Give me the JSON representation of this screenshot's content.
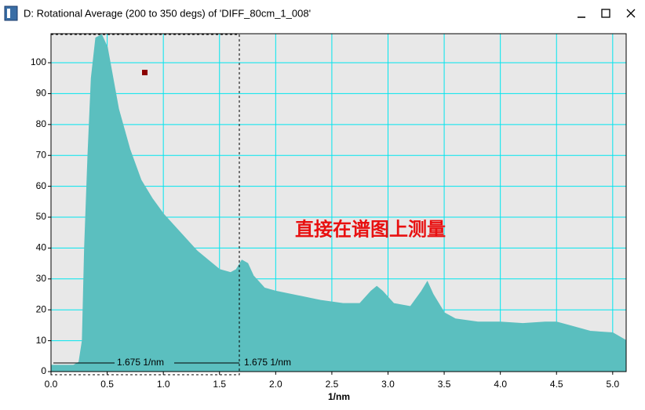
{
  "window": {
    "title": "D: Rotational Average (200 to 350 degs) of 'DIFF_80cm_1_008'"
  },
  "chart_data": {
    "type": "area",
    "xlabel": "1/nm",
    "annotation": "直接在谱图上测量",
    "measurements": [
      "1.675 1/nm",
      "1.675 1/nm"
    ],
    "color": "#5bbfbf",
    "grid": true,
    "xlim": [
      0,
      5.12
    ],
    "ylim": [
      0,
      109.4
    ],
    "xticks": [
      {
        "value": 0,
        "label": "0.0"
      },
      0.5,
      {
        "value": 1,
        "label": "1.0"
      },
      1.5,
      {
        "value": 2,
        "label": "2.0"
      },
      2.5,
      {
        "value": 3,
        "label": "3.0"
      },
      3.5,
      {
        "value": 4,
        "label": "4.0"
      },
      4.5,
      {
        "value": 5,
        "label": "5.0"
      }
    ],
    "yticks": [
      0,
      10,
      20,
      30,
      40,
      50,
      60,
      70,
      80,
      90,
      100
    ],
    "x": [
      0,
      0.1,
      0.2,
      0.25,
      0.28,
      0.3,
      0.33,
      0.36,
      0.4,
      0.45,
      0.5,
      0.55,
      0.6,
      0.7,
      0.8,
      0.9,
      1.0,
      1.1,
      1.2,
      1.3,
      1.4,
      1.5,
      1.6,
      1.65,
      1.7,
      1.75,
      1.8,
      1.9,
      2.0,
      2.2,
      2.4,
      2.6,
      2.75,
      2.85,
      2.9,
      2.95,
      3.05,
      3.2,
      3.3,
      3.35,
      3.4,
      3.5,
      3.6,
      3.8,
      4.0,
      4.2,
      4.4,
      4.5,
      4.6,
      4.8,
      5.0,
      5.12
    ],
    "values": [
      2,
      2,
      2,
      3,
      10,
      40,
      70,
      95,
      108,
      109,
      105,
      95,
      85,
      72,
      62,
      56,
      51,
      47,
      43,
      39,
      36,
      33,
      32,
      33,
      36,
      35,
      31,
      27,
      26,
      24.5,
      23,
      22,
      22,
      26,
      27.5,
      26,
      22,
      21,
      26,
      29,
      25,
      19,
      17,
      16,
      16,
      15.5,
      16,
      16,
      15,
      13,
      12.5,
      10
    ]
  }
}
